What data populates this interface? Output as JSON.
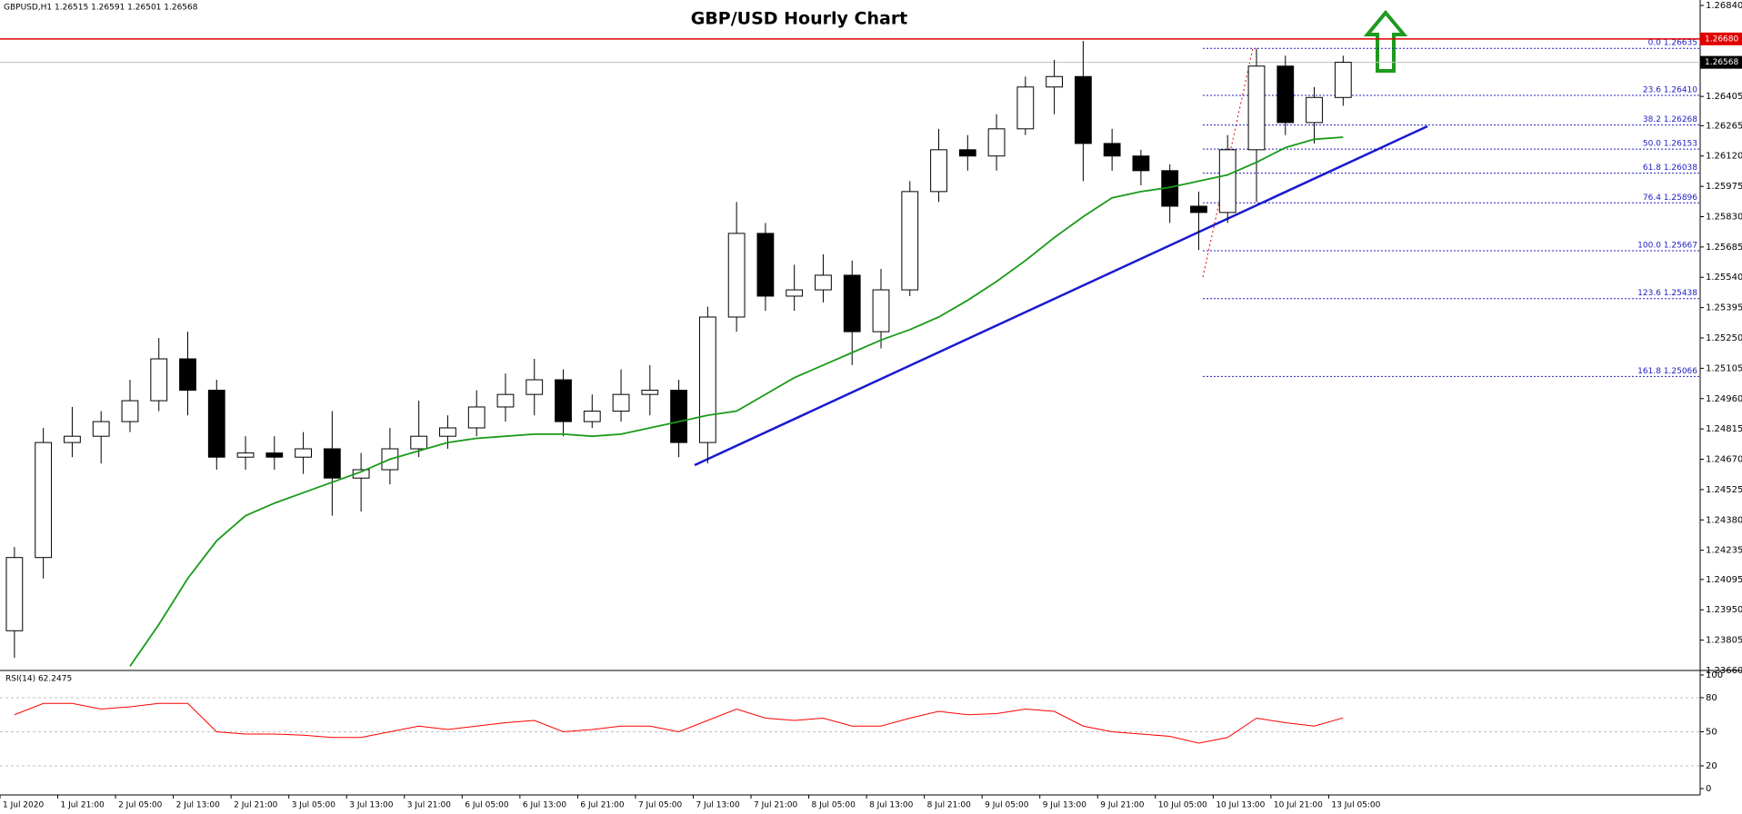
{
  "header": "GBPUSD,H1  1.26515 1.26591 1.26501 1.26568",
  "chart_data": [
    {
      "type": "candlestick",
      "title": "GBP/USD Hourly Chart",
      "open": [
        1.2385,
        1.242,
        1.2475,
        1.2478,
        1.2485,
        1.2495,
        1.2515,
        1.25,
        1.2468,
        1.247,
        1.2468,
        1.2472,
        1.2458,
        1.2462,
        1.2472,
        1.2478,
        1.2482,
        1.2492,
        1.2498,
        1.2505,
        1.2485,
        1.249,
        1.2498,
        1.25,
        1.2475,
        1.2535,
        1.2575,
        1.2545,
        1.2548,
        1.2555,
        1.2528,
        1.2548,
        1.2595,
        1.2615,
        1.2612,
        1.2625,
        1.2645,
        1.265,
        1.2618,
        1.2612,
        1.2605,
        1.2588,
        1.2585,
        1.2615,
        1.2655,
        1.2628,
        1.264
      ],
      "high": [
        1.2425,
        1.2482,
        1.2492,
        1.249,
        1.2505,
        1.2525,
        1.2528,
        1.2505,
        1.2478,
        1.2478,
        1.248,
        1.249,
        1.247,
        1.2482,
        1.2495,
        1.2488,
        1.25,
        1.2508,
        1.2515,
        1.251,
        1.2498,
        1.251,
        1.2512,
        1.2505,
        1.254,
        1.259,
        1.258,
        1.256,
        1.2565,
        1.2562,
        1.2558,
        1.26,
        1.2625,
        1.2622,
        1.2632,
        1.265,
        1.2658,
        1.2667,
        1.2625,
        1.2615,
        1.2608,
        1.2595,
        1.2622,
        1.26635,
        1.266,
        1.2645,
        1.266
      ],
      "low": [
        1.2372,
        1.241,
        1.2468,
        1.2465,
        1.248,
        1.249,
        1.2488,
        1.2462,
        1.2462,
        1.2462,
        1.246,
        1.244,
        1.2442,
        1.2455,
        1.2468,
        1.2472,
        1.2478,
        1.2485,
        1.2488,
        1.2478,
        1.2482,
        1.2485,
        1.2488,
        1.2468,
        1.2465,
        1.2528,
        1.2538,
        1.2538,
        1.2542,
        1.2512,
        1.252,
        1.2545,
        1.259,
        1.2605,
        1.2605,
        1.2622,
        1.2632,
        1.26,
        1.2605,
        1.2598,
        1.258,
        1.2567,
        1.258,
        1.259,
        1.2622,
        1.2618,
        1.2636
      ],
      "close": [
        1.242,
        1.2475,
        1.2478,
        1.2485,
        1.2495,
        1.2515,
        1.25,
        1.2468,
        1.247,
        1.2468,
        1.2472,
        1.2458,
        1.2462,
        1.2472,
        1.2478,
        1.2482,
        1.2492,
        1.2498,
        1.2505,
        1.2485,
        1.249,
        1.2498,
        1.25,
        1.2475,
        1.2535,
        1.2575,
        1.2545,
        1.2548,
        1.2555,
        1.2528,
        1.2548,
        1.2595,
        1.2615,
        1.2612,
        1.2625,
        1.2645,
        1.265,
        1.2618,
        1.2612,
        1.2605,
        1.2588,
        1.2585,
        1.2615,
        1.2655,
        1.2628,
        1.264,
        1.26568
      ],
      "up_color": "#ffffff",
      "down_color": "#000000",
      "ma": {
        "color": "#1a9a1a",
        "values": [
          null,
          null,
          null,
          null,
          1.2368,
          1.2388,
          1.241,
          1.2428,
          1.244,
          1.2446,
          1.2451,
          1.2456,
          1.2461,
          1.2467,
          1.2471,
          1.2475,
          1.2477,
          1.2478,
          1.2479,
          1.2479,
          1.2478,
          1.2479,
          1.2482,
          1.2485,
          1.2488,
          1.249,
          1.2498,
          1.2506,
          1.2512,
          1.2518,
          1.2524,
          1.2529,
          1.2535,
          1.2543,
          1.2552,
          1.2562,
          1.2573,
          1.2583,
          1.2592,
          1.2595,
          1.2597,
          1.26,
          1.2603,
          1.2609,
          1.2616,
          1.262,
          1.2621
        ]
      },
      "ylim": [
        1.2366,
        1.2684
      ],
      "yticks": [
        {
          "value": 1.2684,
          "label": "1.26840"
        },
        {
          "value": 1.26405,
          "label": "1.26405"
        },
        {
          "value": 1.26265,
          "label": "1.26265"
        },
        {
          "value": 1.2612,
          "label": "1.26120"
        },
        {
          "value": 1.25975,
          "label": "1.25975"
        },
        {
          "value": 1.2583,
          "label": "1.25830"
        },
        {
          "value": 1.25685,
          "label": "1.25685"
        },
        {
          "value": 1.2554,
          "label": "1.25540"
        },
        {
          "value": 1.25395,
          "label": "1.25395"
        },
        {
          "value": 1.2525,
          "label": "1.25250"
        },
        {
          "value": 1.25105,
          "label": "1.25105"
        },
        {
          "value": 1.2496,
          "label": "1.24960"
        },
        {
          "value": 1.24815,
          "label": "1.24815"
        },
        {
          "value": 1.2467,
          "label": "1.24670"
        },
        {
          "value": 1.24525,
          "label": "1.24525"
        },
        {
          "value": 1.2438,
          "label": "1.24380"
        },
        {
          "value": 1.24235,
          "label": "1.24235"
        },
        {
          "value": 1.24095,
          "label": "1.24095"
        },
        {
          "value": 1.2395,
          "label": "1.23950"
        },
        {
          "value": 1.23805,
          "label": "1.23805"
        },
        {
          "value": 1.2366,
          "label": "1.23660"
        }
      ],
      "resistance": {
        "value": 1.2668,
        "label": "1.26680",
        "color": "#e00000"
      },
      "last_price": {
        "value": 1.26568,
        "label": "1.26568"
      },
      "fibonacci": [
        {
          "label": "0.0 1.26635",
          "value": 1.26635
        },
        {
          "label": "23.6 1.26410",
          "value": 1.2641
        },
        {
          "label": "38.2 1.26268",
          "value": 1.26268
        },
        {
          "label": "50.0 1.26153",
          "value": 1.26153
        },
        {
          "label": "61.8 1.26038",
          "value": 1.26038
        },
        {
          "label": "76.4 1.25896",
          "value": 1.25896
        },
        {
          "label": "100.0 1.25667",
          "value": 1.25667
        },
        {
          "label": "123.6 1.25438",
          "value": 1.25438
        },
        {
          "label": "161.8 1.25066",
          "value": 1.25066
        }
      ]
    },
    {
      "type": "line",
      "label": "RSI(14) 62.2475",
      "color": "#ff0000",
      "values": [
        65,
        75,
        75,
        70,
        72,
        75,
        75,
        50,
        48,
        48,
        47,
        45,
        45,
        50,
        55,
        52,
        55,
        58,
        60,
        50,
        52,
        55,
        55,
        50,
        60,
        70,
        62,
        60,
        62,
        55,
        55,
        62,
        68,
        65,
        66,
        70,
        68,
        55,
        50,
        48,
        46,
        40,
        45,
        62,
        58,
        55,
        62.2475
      ],
      "ylim": [
        0,
        100
      ],
      "yticks": [
        100,
        80,
        50,
        20,
        0
      ],
      "x_labels": [
        "1 Jul 2020",
        "1 Jul 21:00",
        "2 Jul 05:00",
        "2 Jul 13:00",
        "2 Jul 21:00",
        "3 Jul 05:00",
        "3 Jul 13:00",
        "3 Jul 21:00",
        "6 Jul 05:00",
        "6 Jul 13:00",
        "6 Jul 21:00",
        "7 Jul 05:00",
        "7 Jul 13:00",
        "7 Jul 21:00",
        "8 Jul 05:00",
        "8 Jul 13:00",
        "8 Jul 21:00",
        "9 Jul 05:00",
        "9 Jul 13:00",
        "9 Jul 21:00",
        "10 Jul 05:00",
        "10 Jul 13:00",
        "10 Jul 21:00",
        "13 Jul 05:00"
      ]
    }
  ]
}
